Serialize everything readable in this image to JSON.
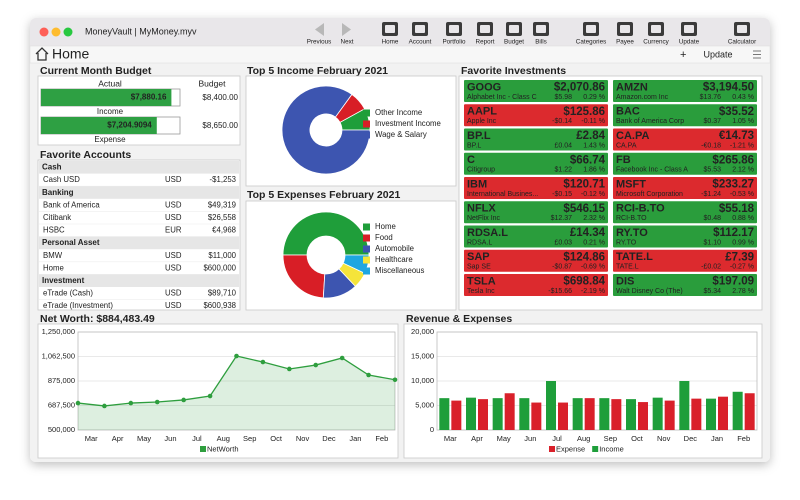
{
  "window": {
    "title": "MoneyVault | MyMoney.myv"
  },
  "toolbar": [
    "Previous",
    "Next",
    "Home",
    "Account",
    "Portfolio",
    "Report",
    "Budget",
    "Bills",
    "Categories",
    "Payee",
    "Currency",
    "Update",
    "Calculator"
  ],
  "page": {
    "title": "Home",
    "add": "+",
    "update": "Update"
  },
  "budget": {
    "title": "Current Month Budget",
    "headers": [
      "Actual",
      "Budget"
    ],
    "rows": [
      {
        "name": "Income",
        "actual": {
          "value": 7880.16,
          "label": "$7,880.16"
        },
        "budget": {
          "value": 8400,
          "label": "$8,400.00"
        }
      },
      {
        "name": "Expense",
        "actual": {
          "value": 7204.9094,
          "label": "$7,204.9094"
        },
        "budget": {
          "value": 8650,
          "label": "$8,650.00"
        }
      }
    ],
    "color": "#2ea043"
  },
  "accounts": {
    "title": "Favorite Accounts",
    "groups": [
      {
        "name": "Cash",
        "rows": [
          [
            "Cash USD",
            "USD",
            "-$1,253"
          ]
        ]
      },
      {
        "name": "Banking",
        "rows": [
          [
            "Bank of America",
            "USD",
            "$49,319"
          ],
          [
            "Citibank",
            "USD",
            "$26,558"
          ],
          [
            "HSBC",
            "EUR",
            "€4,968"
          ]
        ]
      },
      {
        "name": "Personal Asset",
        "rows": [
          [
            "BMW",
            "USD",
            "$11,000"
          ],
          [
            "Home",
            "USD",
            "$600,000"
          ]
        ]
      },
      {
        "name": "Investment",
        "rows": [
          [
            "eTrade (Cash)",
            "USD",
            "$89,710"
          ],
          [
            "eTrade (Investment)",
            "USD",
            "$600,938"
          ]
        ]
      }
    ]
  },
  "investments": {
    "title": "Favorite Investments",
    "items": [
      {
        "symbol": "GOOG",
        "price": "$2,070.86",
        "name": "Alphabet Inc - Class C",
        "change": "$5.98",
        "pct": "0.29 %",
        "color": "#2a9d3c"
      },
      {
        "symbol": "AMZN",
        "price": "$3,194.50",
        "name": "Amazon.com Inc",
        "change": "$13.76",
        "pct": "0.43 %",
        "color": "#2a9d3c"
      },
      {
        "symbol": "AAPL",
        "price": "$125.86",
        "name": "Apple Inc",
        "change": "-$0.14",
        "pct": "-0.11 %",
        "color": "#dc2a2e"
      },
      {
        "symbol": "BAC",
        "price": "$35.52",
        "name": "Bank of America Corp",
        "change": "$0.37",
        "pct": "1.05 %",
        "color": "#2a9d3c"
      },
      {
        "symbol": "BP.L",
        "price": "£2.84",
        "name": "BP.L",
        "change": "£0.04",
        "pct": "1.43 %",
        "color": "#2a9d3c"
      },
      {
        "symbol": "CA.PA",
        "price": "€14.73",
        "name": "CA.PA",
        "change": "-€0.18",
        "pct": "-1.21 %",
        "color": "#dc2a2e"
      },
      {
        "symbol": "C",
        "price": "$66.74",
        "name": "Citigroup",
        "change": "$1.22",
        "pct": "1.86 %",
        "color": "#2a9d3c"
      },
      {
        "symbol": "FB",
        "price": "$265.86",
        "name": "Facebook Inc - Class A",
        "change": "$5.53",
        "pct": "2.12 %",
        "color": "#2a9d3c"
      },
      {
        "symbol": "IBM",
        "price": "$120.71",
        "name": "International Busines...",
        "change": "-$0.15",
        "pct": "-0.12 %",
        "color": "#dc2a2e"
      },
      {
        "symbol": "MSFT",
        "price": "$233.27",
        "name": "Microsoft Corporation",
        "change": "-$1.24",
        "pct": "-0.53 %",
        "color": "#dc2a2e"
      },
      {
        "symbol": "NFLX",
        "price": "$546.15",
        "name": "NetFlix Inc",
        "change": "$12.37",
        "pct": "2.32 %",
        "color": "#2a9d3c"
      },
      {
        "symbol": "RCI-B.TO",
        "price": "$55.18",
        "name": "RCI-B.TO",
        "change": "$0.48",
        "pct": "0.88 %",
        "color": "#2a9d3c"
      },
      {
        "symbol": "RDSA.L",
        "price": "£14.34",
        "name": "RDSA.L",
        "change": "£0.03",
        "pct": "0.21 %",
        "color": "#2a9d3c"
      },
      {
        "symbol": "RY.TO",
        "price": "$112.17",
        "name": "RY.TO",
        "change": "$1.10",
        "pct": "0.99 %",
        "color": "#2a9d3c"
      },
      {
        "symbol": "SAP",
        "price": "$124.86",
        "name": "Sap SE",
        "change": "-$0.87",
        "pct": "-0.69 %",
        "color": "#dc2a2e"
      },
      {
        "symbol": "TATE.L",
        "price": "£7.39",
        "name": "TATE.L",
        "change": "-£0.02",
        "pct": "-0.27 %",
        "color": "#dc2a2e"
      },
      {
        "symbol": "TSLA",
        "price": "$698.84",
        "name": "Tesla Inc",
        "change": "-$15.66",
        "pct": "-2.19 %",
        "color": "#dc2a2e"
      },
      {
        "symbol": "DIS",
        "price": "$197.09",
        "name": "Walt Disney Co (The)",
        "change": "$5.34",
        "pct": "2.78 %",
        "color": "#2a9d3c"
      }
    ]
  },
  "chart_data": [
    {
      "type": "pie",
      "donut": true,
      "title": "Top 5 Income February 2021",
      "categories": [
        "Other Income",
        "Investment Income",
        "Wage & Salary"
      ],
      "values": [
        8,
        7,
        85
      ],
      "colors": [
        "#1f9e3a",
        "#d81e26",
        "#3d55b0"
      ]
    },
    {
      "type": "pie",
      "donut": true,
      "title": "Top 5 Expenses February 2021",
      "categories": [
        "Home",
        "Food",
        "Automobile",
        "Healthcare",
        "Miscellaneous"
      ],
      "values": [
        50,
        24,
        13,
        6,
        7
      ],
      "colors": [
        "#1f9e3a",
        "#d81e26",
        "#3d55b0",
        "#f5e43a",
        "#1ea6e0"
      ]
    },
    {
      "type": "line",
      "title": "Net Worth: $884,483.49",
      "categories": [
        "Mar",
        "Apr",
        "May",
        "Jun",
        "Jul",
        "Aug",
        "Sep",
        "Oct",
        "Nov",
        "Dec",
        "Jan",
        "Feb",
        null
      ],
      "series": [
        {
          "name": "NetWorth",
          "color": "#2e9e3e",
          "values": [
            706000,
            684000,
            706000,
            714000,
            730000,
            760000,
            1066000,
            1020000,
            967000,
            997000,
            1051000,
            921000,
            884483.49
          ]
        }
      ],
      "ylim": [
        500000,
        1250000
      ],
      "yticks": [
        {
          "value": 500000,
          "label": "500,000"
        },
        {
          "value": 687500,
          "label": "687,500"
        },
        {
          "value": 875000,
          "label": "875,000"
        },
        {
          "value": 1062500,
          "label": "1,062,500"
        },
        {
          "value": 1250000,
          "label": "1,250,000"
        }
      ],
      "grid": true
    },
    {
      "type": "bar",
      "title": "Revenue & Expenses",
      "categories": [
        "Mar",
        "Apr",
        "May",
        "Jun",
        "Jul",
        "Aug",
        "Sep",
        "Oct",
        "Nov",
        "Dec",
        "Jan",
        "Feb"
      ],
      "series": [
        {
          "name": "Expense",
          "color": "#d9202a",
          "values": [
            6000,
            6300,
            7500,
            5600,
            5600,
            6500,
            6300,
            5700,
            6000,
            6400,
            6800,
            7500
          ]
        },
        {
          "name": "Income",
          "color": "#1e9e3a",
          "values": [
            6500,
            6600,
            6500,
            6500,
            10000,
            6500,
            6500,
            6300,
            6600,
            10000,
            6400,
            7800
          ]
        }
      ],
      "ylim": [
        0,
        20000
      ],
      "yticks": [
        0,
        {
          "value": 5000,
          "label": "5,000"
        },
        {
          "value": 10000,
          "label": "10,000"
        },
        {
          "value": 15000,
          "label": "15,000"
        },
        {
          "value": 20000,
          "label": "20,000"
        }
      ],
      "grid": true
    }
  ]
}
